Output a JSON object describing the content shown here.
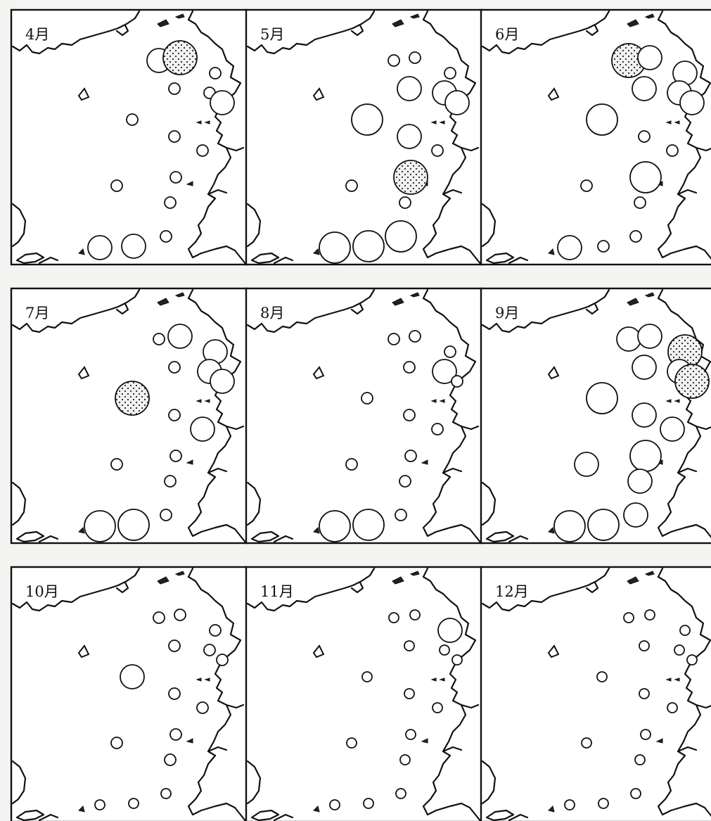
{
  "title": "",
  "panels": [
    {
      "month_label": "4月",
      "stations": [
        {
          "id": "s1",
          "level": "medium"
        },
        {
          "id": "s2",
          "level": "high"
        },
        {
          "id": "s3",
          "level": "small"
        },
        {
          "id": "s4",
          "level": "small"
        },
        {
          "id": "s5",
          "level": "small"
        },
        {
          "id": "s6",
          "level": "medium"
        },
        {
          "id": "s7",
          "level": "small"
        },
        {
          "id": "s8",
          "level": "small"
        },
        {
          "id": "s9",
          "level": "small"
        },
        {
          "id": "s10",
          "level": "small"
        },
        {
          "id": "s11",
          "level": "small"
        },
        {
          "id": "s12",
          "level": "small"
        },
        {
          "id": "s13",
          "level": "medium"
        },
        {
          "id": "s14",
          "level": "medium"
        },
        {
          "id": "s15",
          "level": "small"
        }
      ]
    },
    {
      "month_label": "5月",
      "stations": [
        {
          "id": "s1",
          "level": "small"
        },
        {
          "id": "s2",
          "level": "small"
        },
        {
          "id": "s3",
          "level": "small"
        },
        {
          "id": "s4",
          "level": "medium"
        },
        {
          "id": "s5",
          "level": "medium"
        },
        {
          "id": "s6",
          "level": "medium"
        },
        {
          "id": "s7",
          "level": "large"
        },
        {
          "id": "s8",
          "level": "medium"
        },
        {
          "id": "s9",
          "level": "small"
        },
        {
          "id": "s10",
          "level": "small"
        },
        {
          "id": "s11",
          "level": "high"
        },
        {
          "id": "s12",
          "level": "small"
        },
        {
          "id": "s13",
          "level": "large"
        },
        {
          "id": "s14",
          "level": "large"
        },
        {
          "id": "s15",
          "level": "large"
        }
      ]
    },
    {
      "month_label": "6月",
      "stations": [
        {
          "id": "s1",
          "level": "high"
        },
        {
          "id": "s2",
          "level": "medium"
        },
        {
          "id": "s3",
          "level": "medium"
        },
        {
          "id": "s4",
          "level": "medium"
        },
        {
          "id": "s5",
          "level": "medium"
        },
        {
          "id": "s6",
          "level": "medium"
        },
        {
          "id": "s7",
          "level": "large"
        },
        {
          "id": "s8",
          "level": "small"
        },
        {
          "id": "s9",
          "level": "small"
        },
        {
          "id": "s10",
          "level": "small"
        },
        {
          "id": "s11",
          "level": "large"
        },
        {
          "id": "s12",
          "level": "small"
        },
        {
          "id": "s13",
          "level": "medium"
        },
        {
          "id": "s14",
          "level": "small"
        },
        {
          "id": "s15",
          "level": "small"
        }
      ]
    },
    {
      "month_label": "7月",
      "stations": [
        {
          "id": "s1",
          "level": "small"
        },
        {
          "id": "s2",
          "level": "medium"
        },
        {
          "id": "s3",
          "level": "medium"
        },
        {
          "id": "s4",
          "level": "small"
        },
        {
          "id": "s5",
          "level": "medium"
        },
        {
          "id": "s6",
          "level": "medium"
        },
        {
          "id": "s7",
          "level": "high"
        },
        {
          "id": "s8",
          "level": "small"
        },
        {
          "id": "s9",
          "level": "medium"
        },
        {
          "id": "s10",
          "level": "small"
        },
        {
          "id": "s11",
          "level": "small"
        },
        {
          "id": "s12",
          "level": "small"
        },
        {
          "id": "s13",
          "level": "large"
        },
        {
          "id": "s14",
          "level": "large"
        },
        {
          "id": "s15",
          "level": "small"
        }
      ]
    },
    {
      "month_label": "8月",
      "stations": [
        {
          "id": "s1",
          "level": "small"
        },
        {
          "id": "s2",
          "level": "small"
        },
        {
          "id": "s3",
          "level": "small"
        },
        {
          "id": "s4",
          "level": "small"
        },
        {
          "id": "s5",
          "level": "medium"
        },
        {
          "id": "s6",
          "level": "small"
        },
        {
          "id": "s7",
          "level": "small"
        },
        {
          "id": "s8",
          "level": "small"
        },
        {
          "id": "s9",
          "level": "small"
        },
        {
          "id": "s10",
          "level": "small"
        },
        {
          "id": "s11",
          "level": "small"
        },
        {
          "id": "s12",
          "level": "small"
        },
        {
          "id": "s13",
          "level": "large"
        },
        {
          "id": "s14",
          "level": "large"
        },
        {
          "id": "s15",
          "level": "small"
        }
      ]
    },
    {
      "month_label": "9月",
      "stations": [
        {
          "id": "s1",
          "level": "medium"
        },
        {
          "id": "s2",
          "level": "medium"
        },
        {
          "id": "s3",
          "level": "high"
        },
        {
          "id": "s4",
          "level": "medium"
        },
        {
          "id": "s5",
          "level": "medium"
        },
        {
          "id": "s6",
          "level": "high"
        },
        {
          "id": "s7",
          "level": "large"
        },
        {
          "id": "s8",
          "level": "medium"
        },
        {
          "id": "s9",
          "level": "medium"
        },
        {
          "id": "s10",
          "level": "medium"
        },
        {
          "id": "s11",
          "level": "large"
        },
        {
          "id": "s12",
          "level": "medium"
        },
        {
          "id": "s13",
          "level": "large"
        },
        {
          "id": "s14",
          "level": "large"
        },
        {
          "id": "s15",
          "level": "medium"
        }
      ]
    },
    {
      "month_label": "10月",
      "stations": [
        {
          "id": "s1",
          "level": "small"
        },
        {
          "id": "s2",
          "level": "small"
        },
        {
          "id": "s3",
          "level": "small"
        },
        {
          "id": "s4",
          "level": "small"
        },
        {
          "id": "s5",
          "level": "small"
        },
        {
          "id": "s6",
          "level": "small"
        },
        {
          "id": "s7",
          "level": "medium"
        },
        {
          "id": "s8",
          "level": "small"
        },
        {
          "id": "s9",
          "level": "small"
        },
        {
          "id": "s10",
          "level": "small"
        },
        {
          "id": "s11",
          "level": "small"
        },
        {
          "id": "s12",
          "level": "small"
        },
        {
          "id": "s13",
          "level": "tiny"
        },
        {
          "id": "s14",
          "level": "tiny"
        },
        {
          "id": "s15",
          "level": "tiny"
        }
      ]
    },
    {
      "month_label": "11月",
      "stations": [
        {
          "id": "s1",
          "level": "tiny"
        },
        {
          "id": "s2",
          "level": "tiny"
        },
        {
          "id": "s3",
          "level": "medium"
        },
        {
          "id": "s4",
          "level": "tiny"
        },
        {
          "id": "s5",
          "level": "tiny"
        },
        {
          "id": "s6",
          "level": "tiny"
        },
        {
          "id": "s7",
          "level": "tiny"
        },
        {
          "id": "s8",
          "level": "tiny"
        },
        {
          "id": "s9",
          "level": "tiny"
        },
        {
          "id": "s10",
          "level": "tiny"
        },
        {
          "id": "s11",
          "level": "tiny"
        },
        {
          "id": "s12",
          "level": "tiny"
        },
        {
          "id": "s13",
          "level": "tiny"
        },
        {
          "id": "s14",
          "level": "tiny"
        },
        {
          "id": "s15",
          "level": "tiny"
        }
      ]
    },
    {
      "month_label": "12月",
      "stations": [
        {
          "id": "s1",
          "level": "tiny"
        },
        {
          "id": "s2",
          "level": "tiny"
        },
        {
          "id": "s3",
          "level": "tiny"
        },
        {
          "id": "s4",
          "level": "tiny"
        },
        {
          "id": "s5",
          "level": "tiny"
        },
        {
          "id": "s6",
          "level": "tiny"
        },
        {
          "id": "s7",
          "level": "tiny"
        },
        {
          "id": "s8",
          "level": "tiny"
        },
        {
          "id": "s9",
          "level": "tiny"
        },
        {
          "id": "s10",
          "level": "tiny"
        },
        {
          "id": "s11",
          "level": "tiny"
        },
        {
          "id": "s12",
          "level": "tiny"
        },
        {
          "id": "s13",
          "level": "tiny"
        },
        {
          "id": "s14",
          "level": "tiny"
        },
        {
          "id": "s15",
          "level": "tiny"
        }
      ]
    }
  ],
  "colors": {
    "ink": "#111111",
    "paper": "#ffffff",
    "gutter": "#f4f4f2"
  }
}
